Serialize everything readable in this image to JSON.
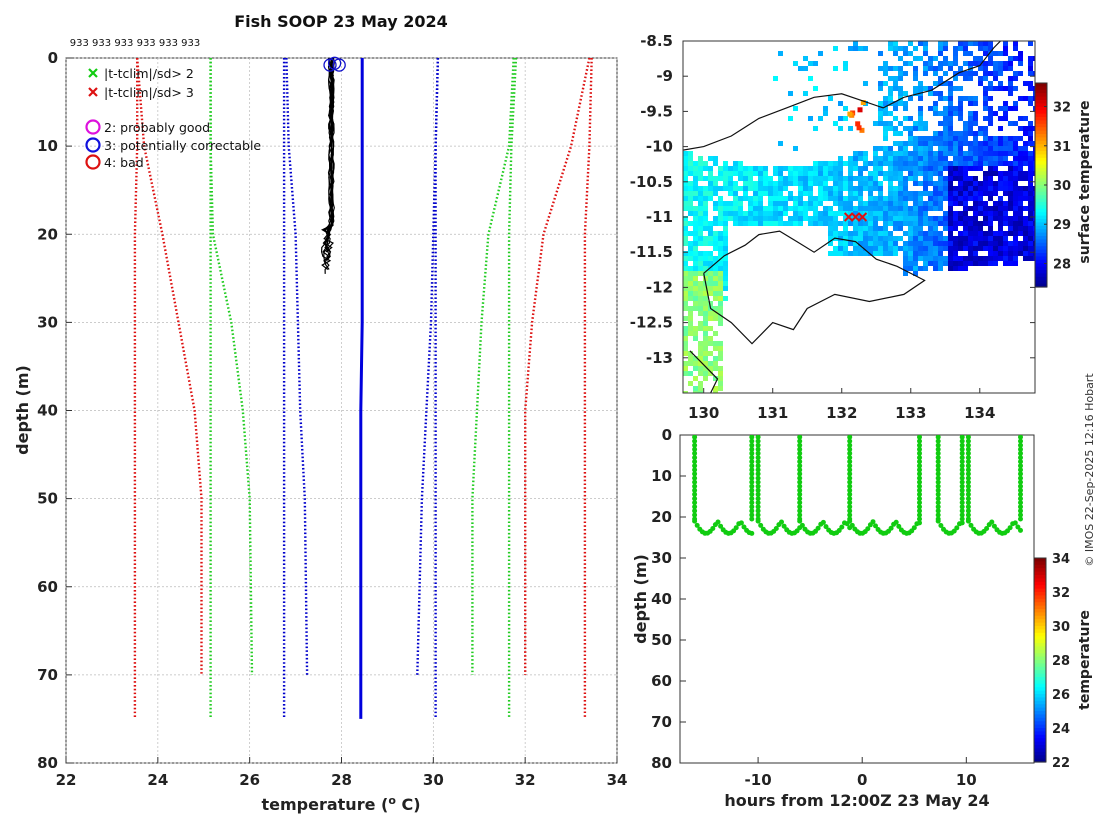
{
  "figure": {
    "title": "Fish SOOP 23 May 2024",
    "footer": "© IMOS 22-Sep-2025 12:16 Hobart"
  },
  "chart_data": [
    {
      "type": "line",
      "name": "profile",
      "title": "Fish SOOP 23 May 2024",
      "xlabel": "temperature (",
      "xlabel_sup": "o",
      "xlabel_end": " C)",
      "ylabel": "depth (m)",
      "xlim": [
        22,
        34
      ],
      "ylim": [
        80,
        0
      ],
      "xticks": [
        22,
        24,
        26,
        28,
        30,
        32,
        34
      ],
      "yticks": [
        0,
        10,
        20,
        30,
        40,
        50,
        60,
        70,
        80
      ],
      "top_annotation": "933 933 933 933 933 933",
      "legend": {
        "x2": "|t-tclim|/sd> 2",
        "x3": "|t-tclim|/sd> 3",
        "flag2": "2: probably good",
        "flag3": "3: potentially correctable",
        "flag4": "4: bad"
      },
      "climatology": {
        "depths": [
          0,
          10,
          20,
          30,
          40,
          50,
          70,
          75
        ],
        "mean_70": [
          28.45,
          28.45,
          28.45,
          28.45,
          28.42,
          28.42,
          28.42
        ],
        "mean_75": [
          28.45,
          28.45,
          28.45,
          28.45,
          28.42,
          28.42,
          28.42,
          28.42
        ],
        "blue_left_70": [
          26.8,
          26.85,
          27.0,
          27.05,
          27.1,
          27.2,
          27.25
        ],
        "blue_right_70": [
          30.1,
          30.05,
          30.0,
          29.95,
          29.85,
          29.75,
          29.65
        ],
        "blue_left_75": [
          26.75,
          26.75,
          26.75,
          26.75,
          26.75,
          26.75,
          26.75,
          26.75
        ],
        "blue_right_75": [
          30.1,
          30.05,
          30.05,
          30.05,
          30.05,
          30.05,
          30.05,
          30.05
        ],
        "green_left_70": [
          25.15,
          25.15,
          25.2,
          25.6,
          25.85,
          26.0,
          26.05
        ],
        "green_right_70": [
          31.75,
          31.65,
          31.2,
          31.05,
          30.95,
          30.85,
          30.85
        ],
        "green_left_75": [
          25.15,
          25.15,
          25.15,
          25.15,
          25.15,
          25.15,
          25.15,
          25.15
        ],
        "green_right_75": [
          31.8,
          31.7,
          31.65,
          31.65,
          31.65,
          31.65,
          31.65,
          31.65
        ],
        "red_left_70": [
          23.55,
          23.7,
          24.1,
          24.45,
          24.8,
          24.95,
          24.95
        ],
        "red_right_70": [
          33.4,
          33.0,
          32.4,
          32.15,
          32.0,
          32.0,
          32.0
        ],
        "red_left_75": [
          23.55,
          23.55,
          23.5,
          23.5,
          23.5,
          23.5,
          23.5,
          23.5
        ],
        "red_right_75": [
          33.45,
          33.4,
          33.3,
          33.3,
          33.3,
          33.3,
          33.3,
          33.3
        ]
      },
      "observed_profiles": {
        "count": 10,
        "temperature_range": [
          27.7,
          28.0
        ],
        "max_depth_range": [
          20,
          25
        ]
      },
      "flag_markers": [
        {
          "t": 27.75,
          "d": 0.8
        },
        {
          "t": 27.85,
          "d": 0.6
        },
        {
          "t": 27.95,
          "d": 0.8
        }
      ],
      "colors": {
        "mean": "#0000dd",
        "sd1": "#0000cc",
        "sd2": "#22cc22",
        "sd3": "#dd1111",
        "profiles": "#000000"
      }
    },
    {
      "type": "heatmap",
      "name": "map",
      "colorbar_label": "surface temperature",
      "colorbar_range": [
        27.4,
        32.6
      ],
      "colorbar_ticks": [
        28,
        29,
        30,
        31,
        32
      ],
      "xlim": [
        129.7,
        134.8
      ],
      "ylim": [
        -13.5,
        -8.5
      ],
      "xticks": [
        130,
        131,
        132,
        133,
        134
      ],
      "yticks": [
        -8.5,
        -9,
        -9.5,
        -10,
        -10.5,
        -11,
        -11.5,
        -12,
        -12.5,
        -13
      ],
      "xtick_labels": [
        "130",
        "131",
        "132",
        "133",
        "134"
      ],
      "ytick_labels": [
        "-8.5",
        "-9",
        "-9.5",
        "-10",
        "-10.5",
        "-11",
        "-11.5",
        "-12",
        "-12.5",
        "-13"
      ],
      "track_points": [
        {
          "lon": 132.1,
          "lat": -11.0
        },
        {
          "lon": 132.2,
          "lat": -11.0
        },
        {
          "lon": 132.3,
          "lat": -11.0
        }
      ]
    },
    {
      "type": "scatter",
      "name": "time-depth",
      "xlabel": "hours from 12:00Z 23 May 24",
      "ylabel": "depth (m)",
      "xlim": [
        -17.5,
        16.5
      ],
      "ylim": [
        80,
        0
      ],
      "xticks": [
        -10,
        0,
        10
      ],
      "yticks": [
        0,
        10,
        20,
        30,
        40,
        50,
        60,
        70,
        80
      ],
      "colorbar_label": "temperature",
      "colorbar_range": [
        22,
        34
      ],
      "colorbar_ticks": [
        22,
        24,
        26,
        28,
        30,
        32,
        34
      ],
      "profile_hours": [
        -16.1,
        -10.6,
        -10.0,
        -6.0,
        -1.2,
        5.5,
        7.3,
        9.6,
        10.2,
        15.2
      ],
      "point_color": "#11cc11"
    }
  ]
}
